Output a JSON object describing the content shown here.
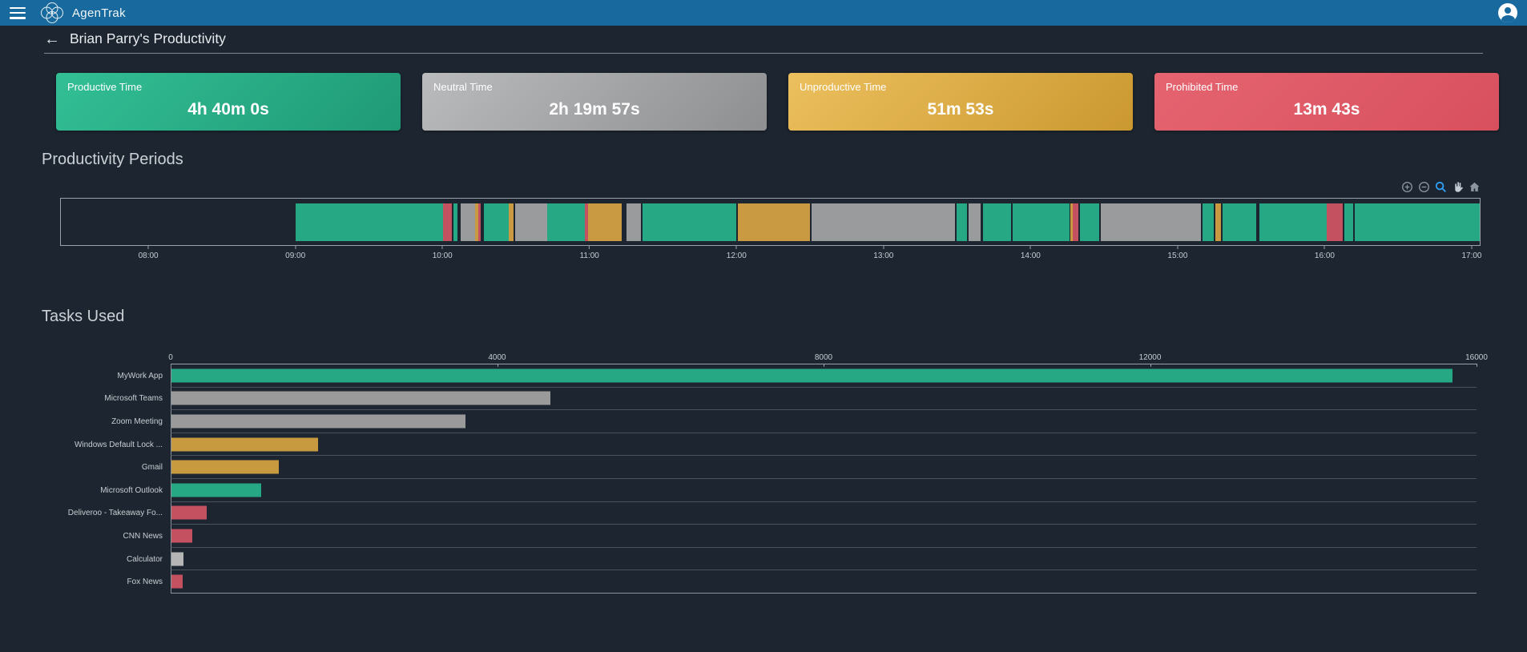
{
  "navbar": {
    "app_name": "AgenTrak"
  },
  "header": {
    "back_arrow": "←",
    "title": "Brian Parry's Productivity"
  },
  "summary_cards": [
    {
      "label": "Productive Time",
      "value": "4h 40m 0s",
      "gradient_from": "#33bf95",
      "gradient_to": "#1f9a76"
    },
    {
      "label": "Neutral Time",
      "value": "2h 19m 57s",
      "gradient_from": "#babbbd",
      "gradient_to": "#8e8f91"
    },
    {
      "label": "Unproductive Time",
      "value": "51m 53s",
      "gradient_from": "#ecc05e",
      "gradient_to": "#cb9830"
    },
    {
      "label": "Prohibited Time",
      "value": "13m 43s",
      "gradient_from": "#e56470",
      "gradient_to": "#d8505e"
    }
  ],
  "periods_section": {
    "title": "Productivity Periods"
  },
  "periods_toolbar": [
    "Zoom in",
    "Zoom out",
    "Box zoom",
    "Pan",
    "Reset view"
  ],
  "tasks_section": {
    "title": "Tasks Used"
  },
  "chart_data": [
    {
      "type": "timeline",
      "title": "Productivity Periods",
      "axis": {
        "min_hour": 7.4,
        "max_hour": 17.06,
        "ticks": [
          {
            "hour": 8,
            "label": "08:00"
          },
          {
            "hour": 9,
            "label": "09:00"
          },
          {
            "hour": 10,
            "label": "10:00"
          },
          {
            "hour": 11,
            "label": "11:00"
          },
          {
            "hour": 12,
            "label": "12:00"
          },
          {
            "hour": 13,
            "label": "13:00"
          },
          {
            "hour": 14,
            "label": "14:00"
          },
          {
            "hour": 15,
            "label": "15:00"
          },
          {
            "hour": 16,
            "label": "16:00"
          },
          {
            "hour": 17,
            "label": "17:00"
          }
        ]
      },
      "category_colors": {
        "productive": "#26a885",
        "neutral": "#9a9b9d",
        "neutral_light": "#b5b5b5",
        "unproductive": "#c99a41",
        "prohibited": "#c4515f"
      },
      "segments": [
        {
          "start": 9.0,
          "end": 10.0,
          "category": "productive"
        },
        {
          "start": 10.0,
          "end": 10.06,
          "category": "prohibited"
        },
        {
          "start": 10.07,
          "end": 10.1,
          "category": "productive"
        },
        {
          "start": 10.12,
          "end": 10.22,
          "category": "neutral"
        },
        {
          "start": 10.22,
          "end": 10.24,
          "category": "unproductive"
        },
        {
          "start": 10.24,
          "end": 10.26,
          "category": "prohibited"
        },
        {
          "start": 10.28,
          "end": 10.45,
          "category": "productive"
        },
        {
          "start": 10.45,
          "end": 10.48,
          "category": "unproductive"
        },
        {
          "start": 10.49,
          "end": 10.71,
          "category": "neutral"
        },
        {
          "start": 10.71,
          "end": 10.97,
          "category": "productive"
        },
        {
          "start": 10.97,
          "end": 10.99,
          "category": "prohibited"
        },
        {
          "start": 10.99,
          "end": 11.22,
          "category": "unproductive"
        },
        {
          "start": 11.25,
          "end": 11.35,
          "category": "neutral"
        },
        {
          "start": 11.36,
          "end": 12.0,
          "category": "productive"
        },
        {
          "start": 12.01,
          "end": 12.5,
          "category": "unproductive"
        },
        {
          "start": 12.51,
          "end": 13.49,
          "category": "neutral"
        },
        {
          "start": 13.5,
          "end": 13.57,
          "category": "productive"
        },
        {
          "start": 13.58,
          "end": 13.66,
          "category": "neutral"
        },
        {
          "start": 13.68,
          "end": 13.87,
          "category": "productive"
        },
        {
          "start": 13.88,
          "end": 14.27,
          "category": "productive"
        },
        {
          "start": 14.27,
          "end": 14.29,
          "category": "unproductive"
        },
        {
          "start": 14.29,
          "end": 14.33,
          "category": "prohibited"
        },
        {
          "start": 14.34,
          "end": 14.47,
          "category": "productive"
        },
        {
          "start": 14.48,
          "end": 15.16,
          "category": "neutral"
        },
        {
          "start": 15.17,
          "end": 15.25,
          "category": "productive"
        },
        {
          "start": 15.26,
          "end": 15.3,
          "category": "unproductive"
        },
        {
          "start": 15.31,
          "end": 15.54,
          "category": "productive"
        },
        {
          "start": 15.56,
          "end": 16.02,
          "category": "productive"
        },
        {
          "start": 16.02,
          "end": 16.13,
          "category": "prohibited"
        },
        {
          "start": 16.14,
          "end": 16.2,
          "category": "productive"
        },
        {
          "start": 16.21,
          "end": 17.06,
          "category": "productive"
        }
      ]
    },
    {
      "type": "bar",
      "title": "Tasks Used",
      "orientation": "horizontal",
      "xlim": [
        0,
        16000
      ],
      "xticks": [
        0,
        4000,
        8000,
        12000,
        16000
      ],
      "category_colors": {
        "productive": "#26a885",
        "neutral": "#9a9a9a",
        "neutral_light": "#b5b5b5",
        "unproductive": "#c89a3f",
        "prohibited": "#c4515f"
      },
      "bars": [
        {
          "label": "MyWork App",
          "value": 15704,
          "category": "productive"
        },
        {
          "label": "Microsoft Teams",
          "value": 4650,
          "category": "neutral"
        },
        {
          "label": "Zoom Meeting",
          "value": 3600,
          "category": "neutral"
        },
        {
          "label": "Windows Default Lock ...",
          "value": 1800,
          "category": "unproductive"
        },
        {
          "label": "Gmail",
          "value": 1313,
          "category": "unproductive"
        },
        {
          "label": "Microsoft Outlook",
          "value": 1096,
          "category": "productive"
        },
        {
          "label": "Deliveroo - Takeaway Fo...",
          "value": 430,
          "category": "prohibited"
        },
        {
          "label": "CNN News",
          "value": 255,
          "category": "prohibited"
        },
        {
          "label": "Calculator",
          "value": 147,
          "category": "neutral_light"
        },
        {
          "label": "Fox News",
          "value": 138,
          "category": "prohibited"
        }
      ]
    }
  ]
}
